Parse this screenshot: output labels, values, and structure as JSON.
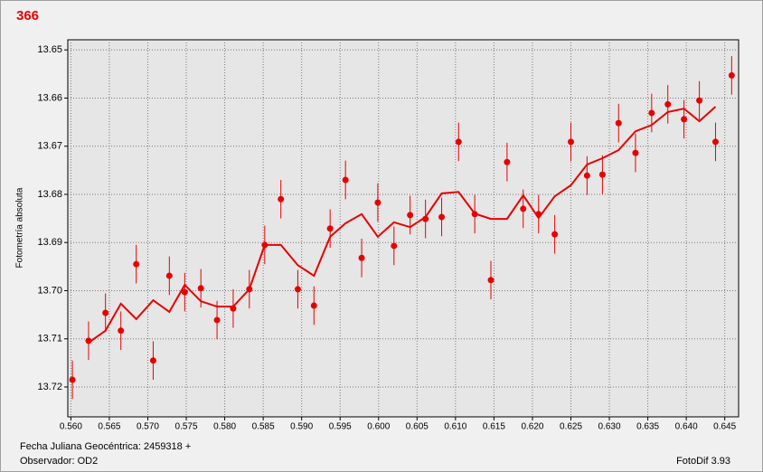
{
  "chart_data": {
    "type": "scatter",
    "title": "366",
    "y_label": "Fotometría absoluta",
    "x_label": "Fecha Juliana Geocéntrica: 2459318 +",
    "observer": "Observador: OD2",
    "software": "FotoDif 3.93",
    "xlim": [
      0.5596,
      0.6468
    ],
    "ylim": [
      13.7262,
      13.6479
    ],
    "grid": true,
    "xticks": [
      {
        "value": 0.56,
        "label": "0.560"
      },
      {
        "value": 0.565,
        "label": "0.565"
      },
      {
        "value": 0.57,
        "label": "0.570"
      },
      {
        "value": 0.575,
        "label": "0.575"
      },
      {
        "value": 0.58,
        "label": "0.580"
      },
      {
        "value": 0.585,
        "label": "0.585"
      },
      {
        "value": 0.59,
        "label": "0.590"
      },
      {
        "value": 0.595,
        "label": "0.595"
      },
      {
        "value": 0.6,
        "label": "0.600"
      },
      {
        "value": 0.605,
        "label": "0.605"
      },
      {
        "value": 0.61,
        "label": "0.610"
      },
      {
        "value": 0.615,
        "label": "0.615"
      },
      {
        "value": 0.62,
        "label": "0.620"
      },
      {
        "value": 0.625,
        "label": "0.625"
      },
      {
        "value": 0.63,
        "label": "0.630"
      },
      {
        "value": 0.635,
        "label": "0.635"
      },
      {
        "value": 0.64,
        "label": "0.640"
      },
      {
        "value": 0.645,
        "label": "0.645"
      }
    ],
    "yticks": [
      13.65,
      13.66,
      13.67,
      13.68,
      13.69,
      {
        "value": 13.7,
        "label": "13.70"
      },
      13.71,
      13.72
    ],
    "series": [
      {
        "type": "scatter",
        "color": "#e80000",
        "x": [
          0.5602,
          0.5623,
          0.5645,
          0.5665,
          0.5685,
          0.5707,
          0.5728,
          0.5748,
          0.5769,
          0.579,
          0.5811,
          0.5832,
          0.5852,
          0.5873,
          0.5895,
          0.5916,
          0.5937,
          0.5957,
          0.5978,
          0.5999,
          0.602,
          0.6041,
          0.6061,
          0.6082,
          0.6104,
          0.6125,
          0.6146,
          0.6167,
          0.6188,
          0.6208,
          0.6229,
          0.625,
          0.6271,
          0.6291,
          0.6312,
          0.6334,
          0.6355,
          0.6376,
          0.6397,
          0.6417,
          0.6438,
          0.6459
        ],
        "values": [
          13.7185,
          13.7104,
          13.7046,
          13.7083,
          13.6945,
          13.7145,
          13.6969,
          13.7003,
          13.6995,
          13.7061,
          13.7037,
          13.6997,
          13.6905,
          13.681,
          13.6997,
          13.7031,
          13.6871,
          13.677,
          13.6932,
          13.6817,
          13.6907,
          13.6843,
          13.6851,
          13.6847,
          13.6691,
          13.6841,
          13.6978,
          13.6733,
          13.683,
          13.6841,
          13.6883,
          13.6691,
          13.6761,
          13.6759,
          13.6652,
          13.6714,
          13.6631,
          13.6613,
          13.6644,
          13.6605,
          13.6691,
          13.6553
        ],
        "errors": [
          0.004,
          0.004,
          0.004,
          0.004,
          0.004,
          0.004,
          0.004,
          0.004,
          0.004,
          0.004,
          0.004,
          0.004,
          0.004,
          0.004,
          0.004,
          0.004,
          0.004,
          0.004,
          0.004,
          0.004,
          0.004,
          0.004,
          0.004,
          0.004,
          0.004,
          0.004,
          0.004,
          0.004,
          0.004,
          0.004,
          0.004,
          0.004,
          0.004,
          0.004,
          0.004,
          0.004,
          0.004,
          0.004,
          0.004,
          0.004,
          0.004,
          0.004
        ]
      },
      {
        "type": "line",
        "color": "#e80000",
        "x": [
          0.5623,
          0.5645,
          0.5665,
          0.5685,
          0.5707,
          0.5728,
          0.5748,
          0.5769,
          0.579,
          0.5811,
          0.5832,
          0.5852,
          0.5873,
          0.5895,
          0.5916,
          0.5937,
          0.5957,
          0.5978,
          0.5999,
          0.602,
          0.6041,
          0.6061,
          0.6082,
          0.6104,
          0.6125,
          0.6146,
          0.6167,
          0.6188,
          0.6208,
          0.6229,
          0.625,
          0.6271,
          0.6291,
          0.6312,
          0.6334,
          0.6355,
          0.6376,
          0.6397,
          0.6417,
          0.6438
        ],
        "values": [
          13.7108,
          13.7083,
          13.7027,
          13.7059,
          13.702,
          13.7044,
          13.6988,
          13.7022,
          13.7033,
          13.7033,
          13.6997,
          13.6905,
          13.6905,
          13.6947,
          13.6969,
          13.6888,
          13.686,
          13.6841,
          13.6888,
          13.6858,
          13.6868,
          13.6847,
          13.6798,
          13.6795,
          13.684,
          13.6851,
          13.6851,
          13.6802,
          13.6849,
          13.6804,
          13.6781,
          13.6738,
          13.6725,
          13.6708,
          13.6669,
          13.6656,
          13.6629,
          13.6622,
          13.6648,
          13.6618
        ]
      }
    ]
  }
}
